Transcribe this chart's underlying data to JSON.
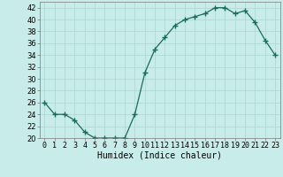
{
  "x": [
    0,
    1,
    2,
    3,
    4,
    5,
    6,
    7,
    8,
    9,
    10,
    11,
    12,
    13,
    14,
    15,
    16,
    17,
    18,
    19,
    20,
    21,
    22,
    23
  ],
  "y": [
    26,
    24,
    24,
    23,
    21,
    20,
    20,
    20,
    20,
    24,
    31,
    35,
    37,
    39,
    40,
    40.5,
    41,
    42,
    42,
    41,
    41.5,
    39.5,
    36.5,
    34
  ],
  "line_color": "#1a6b5a",
  "marker_color": "#1a6b5a",
  "bg_color": "#c8ecea",
  "grid_color": "#afd8d4",
  "xlabel": "Humidex (Indice chaleur)",
  "ylim": [
    20,
    43
  ],
  "xlim": [
    -0.5,
    23.5
  ],
  "yticks": [
    20,
    22,
    24,
    26,
    28,
    30,
    32,
    34,
    36,
    38,
    40,
    42
  ],
  "xtick_labels": [
    "0",
    "1",
    "2",
    "3",
    "4",
    "5",
    "6",
    "7",
    "8",
    "9",
    "10",
    "11",
    "12",
    "13",
    "14",
    "15",
    "16",
    "17",
    "18",
    "19",
    "20",
    "21",
    "22",
    "23"
  ],
  "label_fontsize": 7,
  "tick_fontsize": 6
}
